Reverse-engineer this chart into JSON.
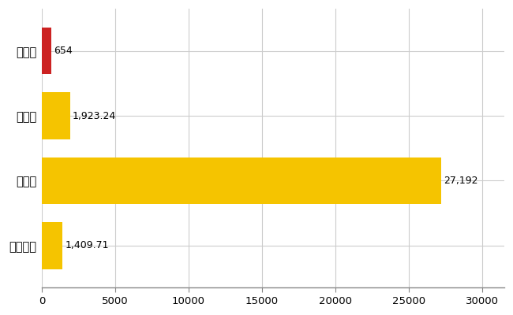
{
  "categories": [
    "茧田町",
    "県平均",
    "県最大",
    "全国平均"
  ],
  "values": [
    654,
    1923.24,
    27192,
    1409.71
  ],
  "bar_colors": [
    "#cc2222",
    "#f5c400",
    "#f5c400",
    "#f5c400"
  ],
  "value_labels": [
    "654",
    "1,923.24",
    "27,192",
    "1,409.71"
  ],
  "xlim": [
    0,
    31500
  ],
  "xticks": [
    0,
    5000,
    10000,
    15000,
    20000,
    25000,
    30000
  ],
  "xtick_labels": [
    "0",
    "5000",
    "10000",
    "15000",
    "20000",
    "25000",
    "30000"
  ],
  "bar_height": 0.72,
  "background_color": "#ffffff",
  "grid_color": "#cccccc",
  "label_fontsize": 10.5,
  "tick_fontsize": 9.5,
  "value_fontsize": 9
}
